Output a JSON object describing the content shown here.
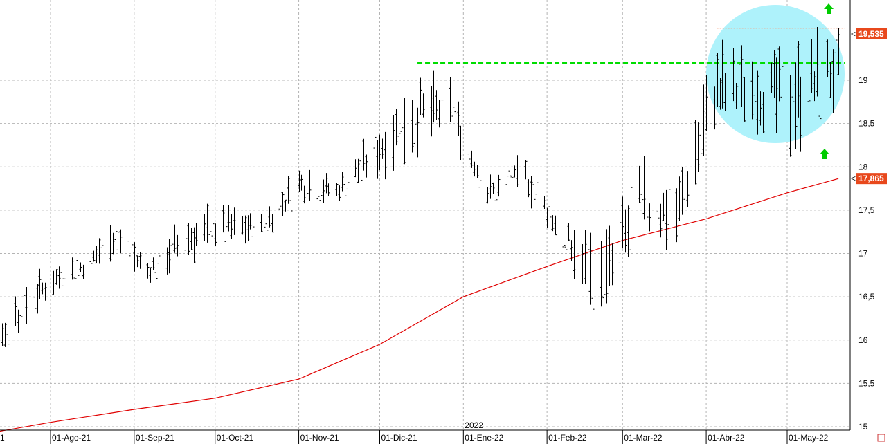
{
  "colors": {
    "background": "#ffffff",
    "grid": "#b4b4b4",
    "bars": "#000000",
    "moving_average": "#e00000",
    "resistance_line": "#00dd00",
    "highlight_circle": "#aef2fb",
    "arrow": "#00cc00",
    "dotted_level": "#f4a080",
    "price_tag": "#e8481c"
  },
  "chart_data": {
    "type": "ohlc",
    "x_tick_labels": [
      "01-Ago-21",
      "01-Sep-21",
      "01-Oct-21",
      "01-Nov-21",
      "01-Dic-21",
      "01-Ene-22",
      "01-Feb-22",
      "01-Mar-22",
      "01-Abr-22",
      "01-May-22"
    ],
    "year_label": "2022",
    "left_edge_label": "1",
    "y_tick_labels": [
      "15",
      "15,5",
      "16",
      "16,5",
      "17",
      "17,5",
      "18",
      "18,5",
      "19"
    ],
    "y_ticks": [
      15,
      15.5,
      16,
      16.5,
      17,
      17.5,
      18,
      18.5,
      19
    ],
    "ylim": [
      15,
      19.9
    ],
    "y_axis_side": "right",
    "grid": true,
    "price_tags": [
      {
        "label": "19,535",
        "value": 19.535
      },
      {
        "label": "17,865",
        "value": 17.865
      }
    ],
    "annotations": {
      "resistance_level": 19.2,
      "dotted_level": 19.6,
      "circle_region": "last ~2 months around 18.3–19.8",
      "arrows": "two green up arrows"
    },
    "moving_average": [
      {
        "x": "2021-07-01",
        "y": 14.88
      },
      {
        "x": "2021-08-01",
        "y": 15.05
      },
      {
        "x": "2021-09-01",
        "y": 15.2
      },
      {
        "x": "2021-10-01",
        "y": 15.33
      },
      {
        "x": "2021-11-01",
        "y": 15.55
      },
      {
        "x": "2021-12-01",
        "y": 15.95
      },
      {
        "x": "2022-01-01",
        "y": 16.5
      },
      {
        "x": "2022-02-01",
        "y": 16.85
      },
      {
        "x": "2022-03-01",
        "y": 17.15
      },
      {
        "x": "2022-04-01",
        "y": 17.4
      },
      {
        "x": "2022-05-01",
        "y": 17.7
      },
      {
        "x": "2022-05-20",
        "y": 17.865
      }
    ],
    "ohlc_weekly_summary": [
      {
        "x": "2021-07-05",
        "h": 15.8,
        "l": 15.4
      },
      {
        "x": "2021-07-19",
        "h": 16.7,
        "l": 15.9
      },
      {
        "x": "2021-08-02",
        "h": 16.9,
        "l": 16.5
      },
      {
        "x": "2021-08-16",
        "h": 17.1,
        "l": 16.7
      },
      {
        "x": "2021-08-23",
        "h": 17.55,
        "l": 16.9
      },
      {
        "x": "2021-09-06",
        "h": 17.0,
        "l": 16.6
      },
      {
        "x": "2021-09-20",
        "h": 17.55,
        "l": 16.8
      },
      {
        "x": "2021-10-04",
        "h": 17.6,
        "l": 17.0
      },
      {
        "x": "2021-10-18",
        "h": 17.5,
        "l": 17.1
      },
      {
        "x": "2021-11-01",
        "h": 18.1,
        "l": 17.5
      },
      {
        "x": "2021-11-15",
        "h": 17.9,
        "l": 17.55
      },
      {
        "x": "2021-11-29",
        "h": 18.5,
        "l": 17.8
      },
      {
        "x": "2021-12-13",
        "h": 19.2,
        "l": 18.0
      },
      {
        "x": "2021-12-27",
        "h": 19.05,
        "l": 18.3
      },
      {
        "x": "2022-01-10",
        "h": 17.9,
        "l": 17.5
      },
      {
        "x": "2022-01-24",
        "h": 18.2,
        "l": 17.6
      },
      {
        "x": "2022-02-07",
        "h": 17.5,
        "l": 16.9
      },
      {
        "x": "2022-02-21",
        "h": 17.3,
        "l": 15.8
      },
      {
        "x": "2022-03-07",
        "h": 18.2,
        "l": 16.9
      },
      {
        "x": "2022-03-21",
        "h": 17.9,
        "l": 17.0
      },
      {
        "x": "2022-04-04",
        "h": 19.55,
        "l": 18.2
      },
      {
        "x": "2022-04-18",
        "h": 19.4,
        "l": 18.4
      },
      {
        "x": "2022-05-02",
        "h": 19.55,
        "l": 17.95
      },
      {
        "x": "2022-05-16",
        "h": 19.7,
        "l": 18.5
      }
    ]
  }
}
